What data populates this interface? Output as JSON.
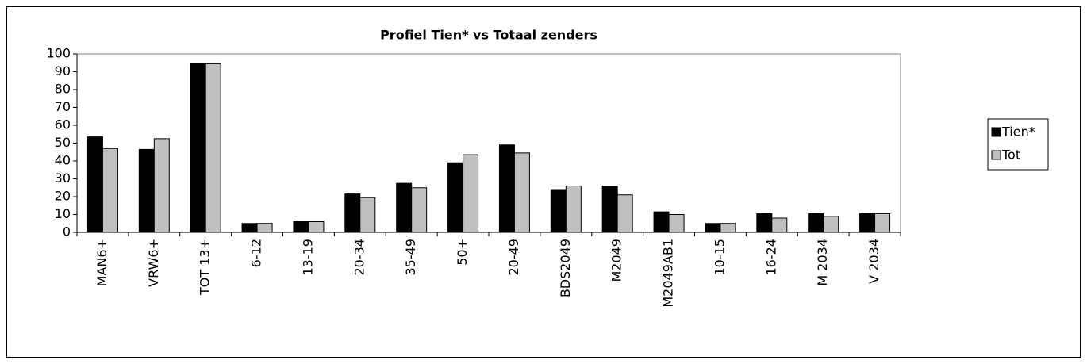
{
  "chart_data": {
    "type": "bar",
    "title": "Profiel Tien* vs Totaal zenders",
    "categories": [
      "MAN6+",
      "VRW6+",
      "TOT 13+",
      "6-12",
      "13-19",
      "20-34",
      "35-49",
      "50+",
      "20-49",
      "BDS2049",
      "M2049",
      "M2049AB1",
      "10-15",
      "16-24",
      "M 2034",
      "V 2034"
    ],
    "series": [
      {
        "name": "Tien*",
        "color": "#000000",
        "values": [
          53.5,
          46.5,
          94.5,
          5,
          6,
          21.5,
          27.5,
          39,
          49,
          24,
          26,
          11.5,
          5,
          10.5,
          10.5,
          10.5
        ]
      },
      {
        "name": "Tot",
        "color": "#c0c0c0",
        "values": [
          47,
          52.5,
          94.5,
          5,
          6,
          19.5,
          25,
          43.5,
          44.5,
          26,
          21,
          10,
          5,
          8,
          9,
          10.5
        ]
      }
    ],
    "ylim": [
      0,
      100
    ],
    "yticks": [
      0,
      10,
      20,
      30,
      40,
      50,
      60,
      70,
      80,
      90,
      100
    ],
    "grid": false,
    "legend": "right"
  }
}
